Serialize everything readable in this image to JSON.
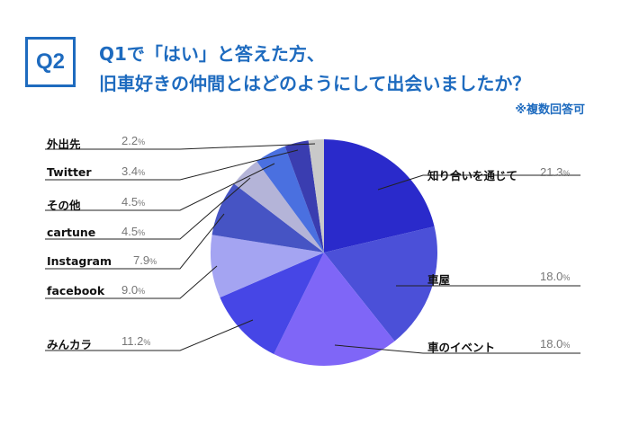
{
  "header": {
    "badge": "Q2",
    "title_line1": "Q1で「はい」と答えた方、",
    "title_line2": "旧車好きの仲間とはどのようにして出会いましたか？",
    "note": "※複数回答可"
  },
  "chart_data": {
    "type": "pie",
    "title": "旧車好きの仲間とはどのようにして出会いましたか？",
    "start": "top",
    "direction": "clockwise",
    "slices": [
      {
        "label": "知り合いを通じて",
        "value": 21.3,
        "pct": "21.3",
        "color": "#2a2acb"
      },
      {
        "label": "車屋",
        "value": 18.0,
        "pct": "18.0",
        "color": "#4b50d8"
      },
      {
        "label": "車のイベント",
        "value": 18.0,
        "pct": "18.0",
        "color": "#7f66f7"
      },
      {
        "label": "みんカラ",
        "value": 11.2,
        "pct": "11.2",
        "color": "#4646e6"
      },
      {
        "label": "facebook",
        "value": 9.0,
        "pct": "9.0",
        "color": "#a4a4f2"
      },
      {
        "label": "Instagram",
        "value": 7.9,
        "pct": "7.9",
        "color": "#4654c4"
      },
      {
        "label": "cartune",
        "value": 4.5,
        "pct": "4.5",
        "color": "#b4b4d8"
      },
      {
        "label": "その他",
        "value": 4.5,
        "pct": "4.5",
        "color": "#4a70e0"
      },
      {
        "label": "Twitter",
        "value": 3.4,
        "pct": "3.4",
        "color": "#3a3db0"
      },
      {
        "label": "外出先",
        "value": 2.2,
        "pct": "2.2",
        "color": "#c9c9c9"
      }
    ],
    "percent_sign": "%"
  }
}
